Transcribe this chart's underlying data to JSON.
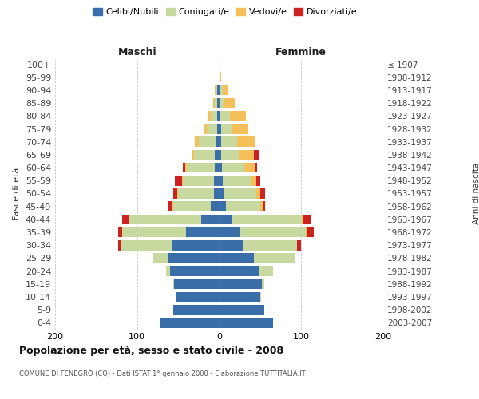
{
  "age_groups": [
    "0-4",
    "5-9",
    "10-14",
    "15-19",
    "20-24",
    "25-29",
    "30-34",
    "35-39",
    "40-44",
    "45-49",
    "50-54",
    "55-59",
    "60-64",
    "65-69",
    "70-74",
    "75-79",
    "80-84",
    "85-89",
    "90-94",
    "95-99",
    "100+"
  ],
  "birth_years": [
    "2003-2007",
    "1998-2002",
    "1993-1997",
    "1988-1992",
    "1983-1987",
    "1978-1982",
    "1973-1977",
    "1968-1972",
    "1963-1967",
    "1958-1962",
    "1953-1957",
    "1948-1952",
    "1943-1947",
    "1938-1942",
    "1933-1937",
    "1928-1932",
    "1923-1927",
    "1918-1922",
    "1913-1917",
    "1908-1912",
    "≤ 1907"
  ],
  "males": {
    "celibi": [
      72,
      56,
      52,
      55,
      60,
      62,
      58,
      40,
      22,
      10,
      6,
      6,
      5,
      5,
      3,
      2,
      2,
      2,
      2,
      0,
      0
    ],
    "coniugati": [
      0,
      0,
      0,
      1,
      5,
      18,
      62,
      78,
      88,
      46,
      44,
      38,
      34,
      26,
      22,
      13,
      8,
      3,
      2,
      0,
      0
    ],
    "vedovi": [
      0,
      0,
      0,
      0,
      0,
      0,
      0,
      0,
      0,
      1,
      1,
      1,
      2,
      2,
      5,
      4,
      4,
      2,
      1,
      0,
      0
    ],
    "divorziati": [
      0,
      0,
      0,
      0,
      0,
      0,
      3,
      5,
      8,
      5,
      5,
      9,
      3,
      0,
      0,
      0,
      0,
      0,
      0,
      0,
      0
    ]
  },
  "females": {
    "nubili": [
      66,
      55,
      50,
      52,
      48,
      42,
      30,
      26,
      15,
      8,
      5,
      4,
      3,
      2,
      2,
      2,
      1,
      1,
      1,
      0,
      0
    ],
    "coniugate": [
      0,
      0,
      1,
      3,
      18,
      50,
      65,
      80,
      86,
      42,
      40,
      34,
      28,
      22,
      20,
      14,
      12,
      5,
      3,
      1,
      0
    ],
    "vedove": [
      0,
      0,
      0,
      0,
      0,
      0,
      0,
      1,
      2,
      3,
      5,
      7,
      12,
      18,
      22,
      20,
      20,
      13,
      6,
      1,
      0
    ],
    "divorziate": [
      0,
      0,
      0,
      0,
      0,
      0,
      5,
      8,
      8,
      3,
      6,
      5,
      3,
      6,
      0,
      0,
      0,
      0,
      0,
      0,
      0
    ]
  },
  "colors": {
    "celibi": "#3a6ea8",
    "coniugati": "#c8d9a0",
    "vedovi": "#f5c05a",
    "divorziati": "#cc2222"
  },
  "title": "Popolazione per età, sesso e stato civile - 2008",
  "subtitle": "COMUNE DI FENEGRÒ (CO) - Dati ISTAT 1° gennaio 2008 - Elaborazione TUTTITALIA.IT",
  "xlabel_left": "Maschi",
  "xlabel_right": "Femmine",
  "ylabel_left": "Fasce di età",
  "ylabel_right": "Anni di nascita",
  "xlim": 200,
  "background_color": "#ffffff",
  "legend_labels": [
    "Celibi/Nubili",
    "Coniugati/e",
    "Vedovi/e",
    "Divorziati/e"
  ]
}
